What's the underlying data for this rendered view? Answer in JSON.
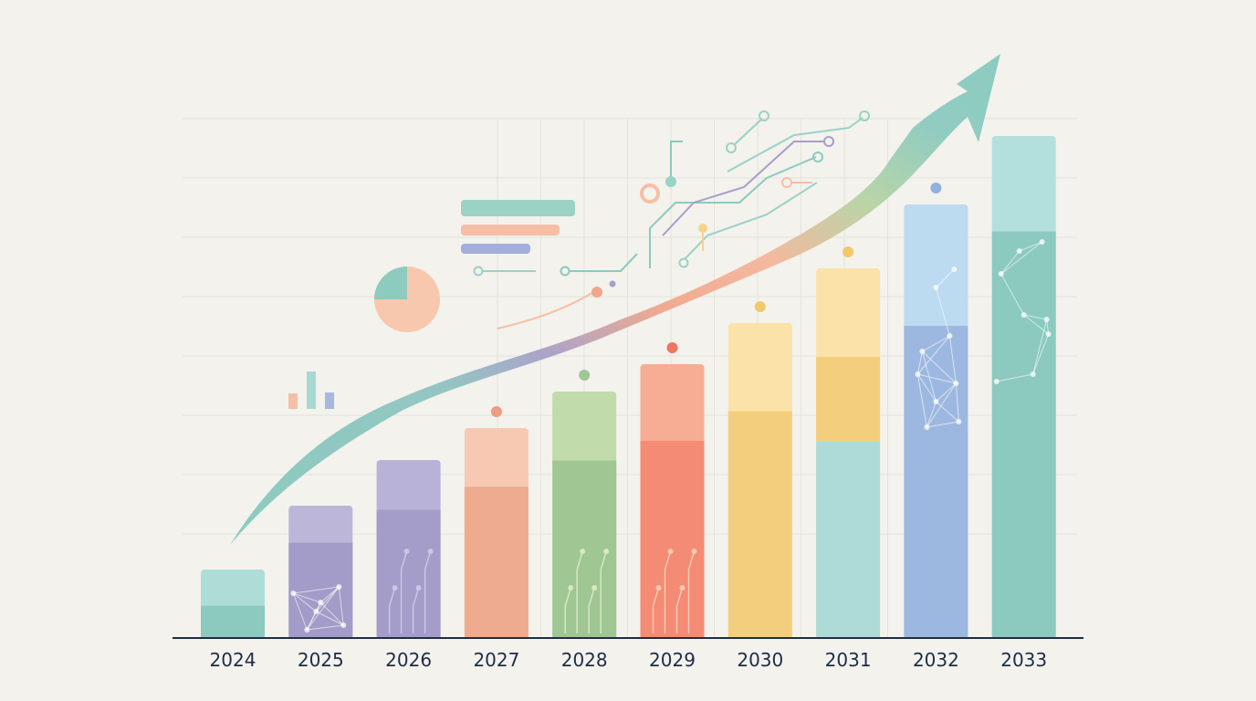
{
  "colors": {
    "background": "#f3f2ed",
    "axis": "#1f2d44",
    "grid": "#e4e3dd",
    "text": "#1f2d44",
    "arrow_start": "#86c9bd",
    "arrow_mid_purple": "#a79fc9",
    "arrow_mid_salmon": "#f0a68a",
    "arrow_mid_green": "#b7d3a3",
    "arrow_end": "#8ccabf"
  },
  "decorations": {
    "icons": [
      "mini-bar-chart-icon",
      "pie-chart-icon",
      "legend-lines-icon",
      "circuit-lines-icon",
      "trend-arrow-icon",
      "network-nodes-icon"
    ]
  },
  "chart_data": {
    "type": "bar",
    "title": "",
    "xlabel": "",
    "ylabel": "",
    "categories": [
      "2024",
      "2025",
      "2026",
      "2027",
      "2028",
      "2029",
      "2030",
      "2031",
      "2032",
      "2033"
    ],
    "values": [
      15,
      29,
      39,
      46,
      54,
      60,
      69,
      81,
      95,
      110
    ],
    "bar_colors": [
      {
        "light": "#aeddd8",
        "dark": "#8ccabf",
        "dot": null
      },
      {
        "light": "#bcb6d8",
        "dark": "#a39cc8",
        "dot": null
      },
      {
        "light": "#b9b2d8",
        "dark": "#a49cc9",
        "dot": null
      },
      {
        "light": "#f7c9b2",
        "dark": "#eeab8f",
        "dot": "#ee9c85"
      },
      {
        "light": "#c1dbab",
        "dark": "#9fc693",
        "dot": "#9fc693"
      },
      {
        "light": "#f7ad94",
        "dark": "#f48b74",
        "dot": "#ef7561"
      },
      {
        "light": "#fae2a8",
        "dark": "#f3cf7d",
        "dot": "#f2c86a"
      },
      {
        "light": "#fae2a8",
        "dark": "#f3cf7d",
        "dot": "#f2c86a"
      },
      {
        "light": "#bcdaf0",
        "dark": "#9db8e0",
        "dot": "#92b0dd"
      },
      {
        "light": "#b3e0dc",
        "dark": "#8ccabf",
        "dot": null
      }
    ],
    "ylim": [
      0,
      112
    ],
    "grid": true,
    "legend": "none",
    "trend_arrow": true
  }
}
